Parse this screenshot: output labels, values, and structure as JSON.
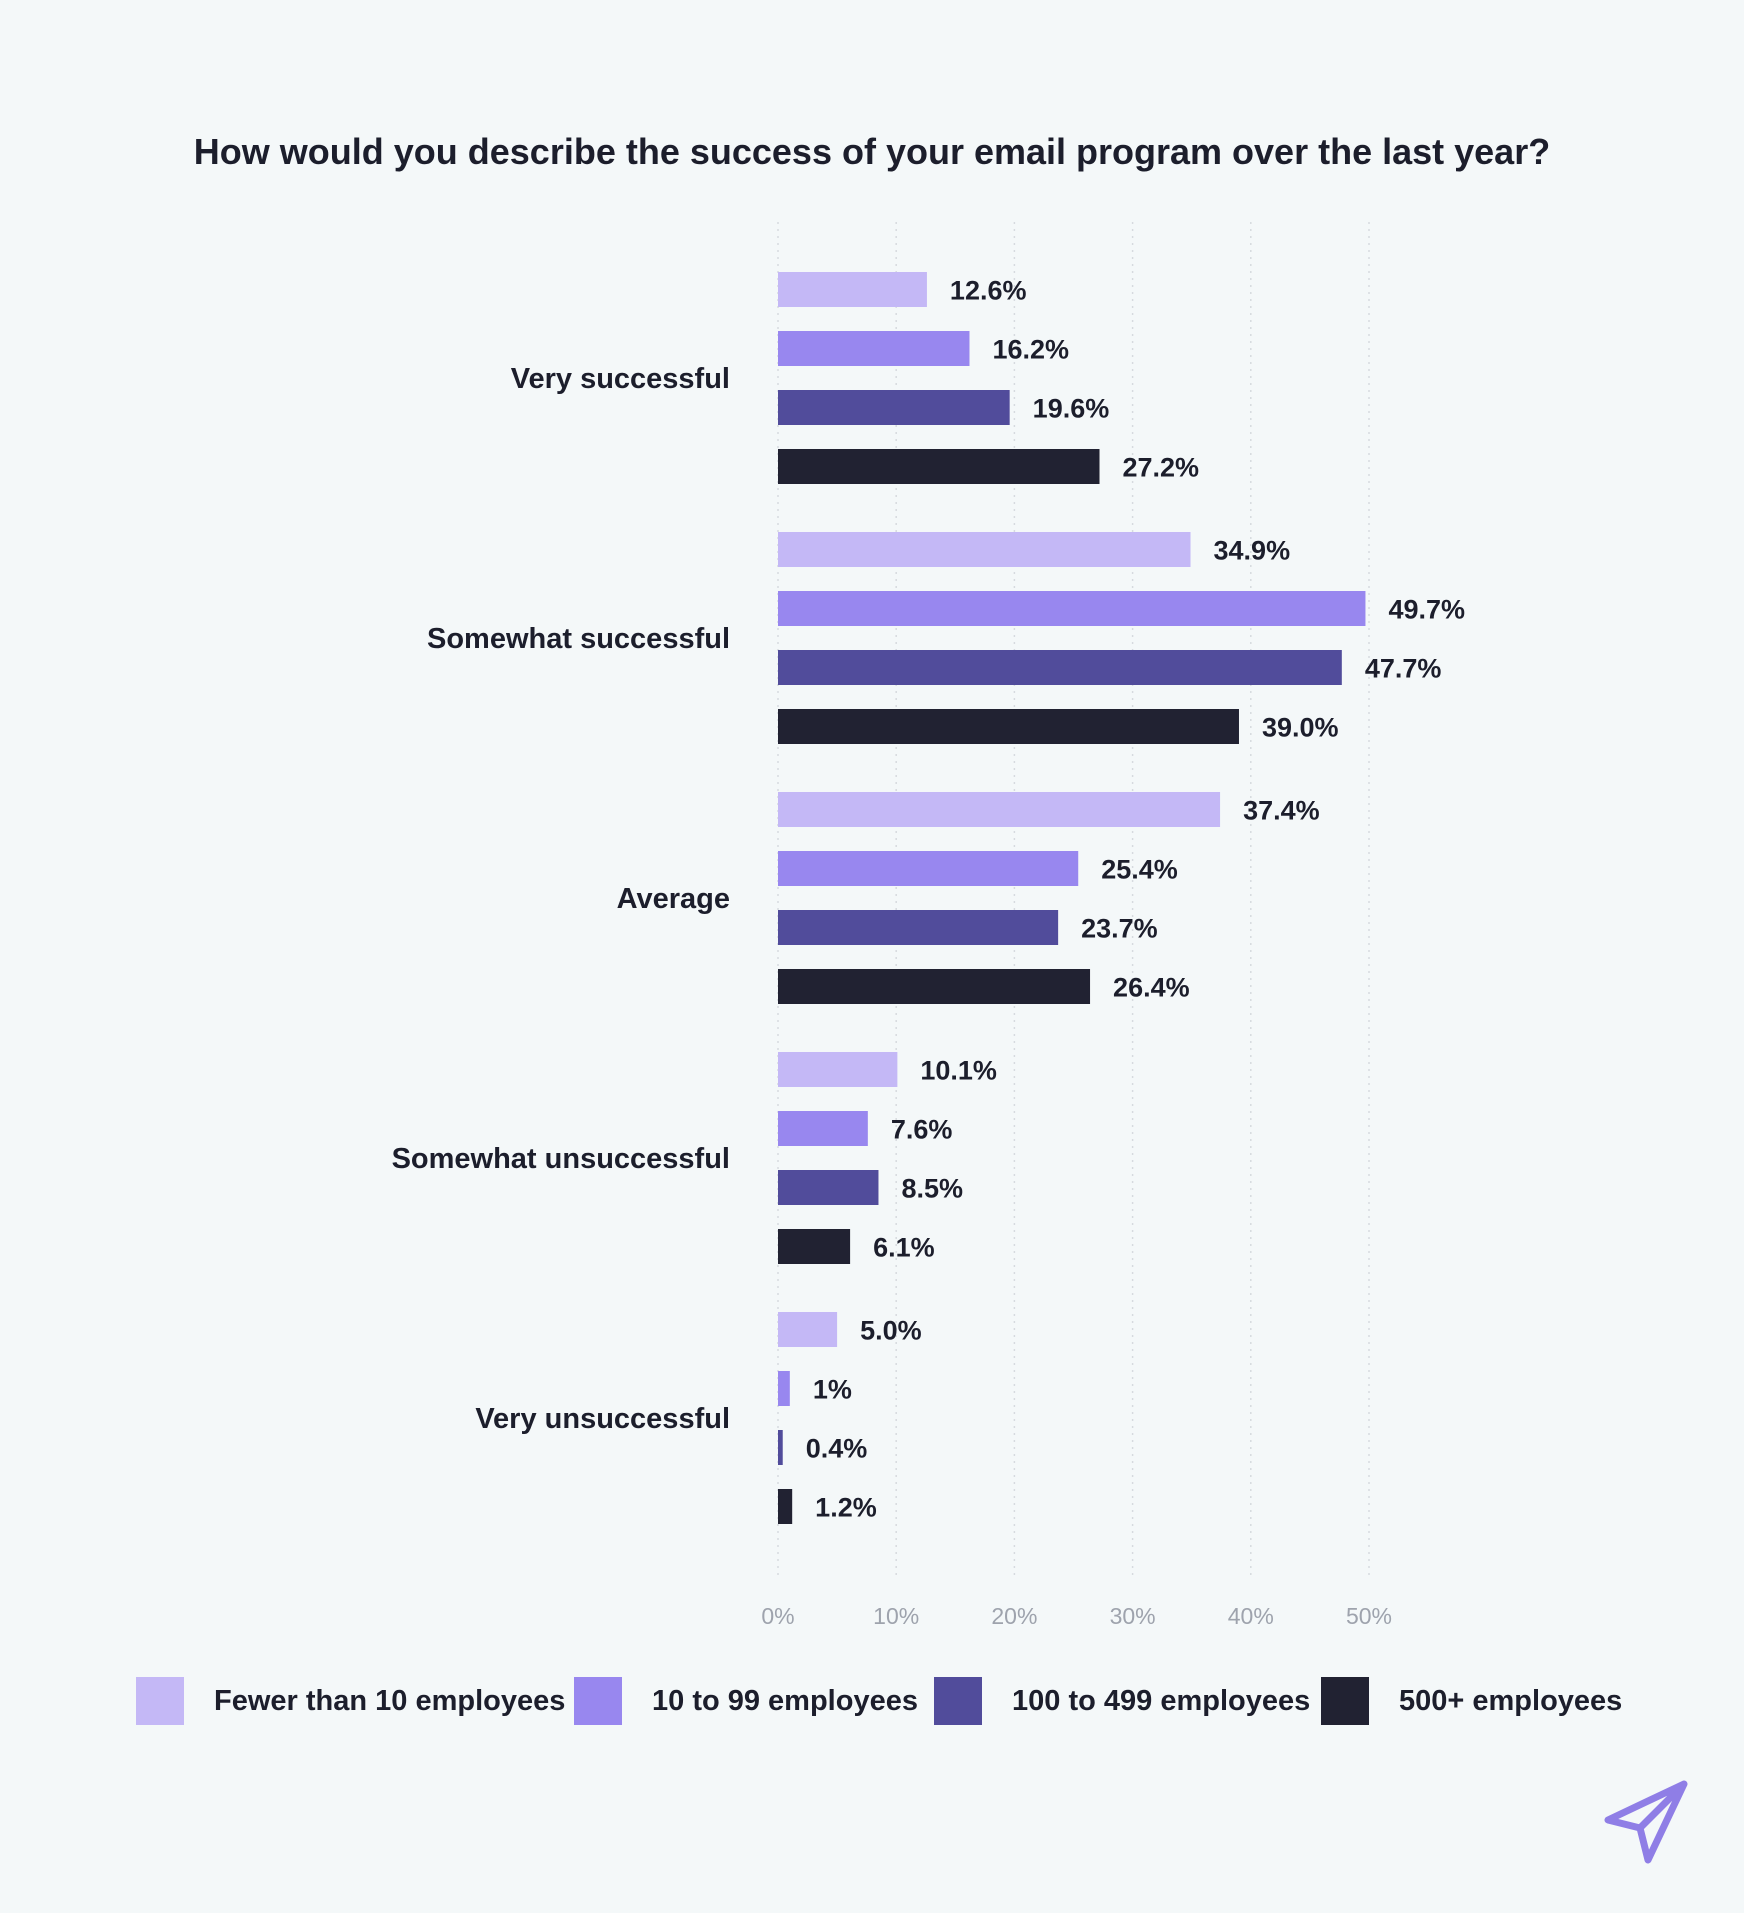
{
  "title": "How would you describe the success of your email program over the last year?",
  "colors": {
    "background": "#f4f8f9",
    "series": [
      "#c4b8f6",
      "#9887ef",
      "#514c9b",
      "#212232"
    ],
    "text": "#1c1e2c",
    "tick": "#9ea3ad",
    "logo": "#8f7ee6"
  },
  "logo": {
    "icon": "paper-plane-icon"
  },
  "chart_data": {
    "type": "bar",
    "orientation": "horizontal",
    "title": "How would you describe the success of your email program over the last year?",
    "xlabel": "",
    "ylabel": "",
    "xlim": [
      0,
      50
    ],
    "x_ticks": [
      "0%",
      "10%",
      "20%",
      "30%",
      "40%",
      "50%"
    ],
    "grid": "vertical dotted",
    "legend_position": "bottom",
    "categories": [
      "Very successful",
      "Somewhat successful",
      "Average",
      "Somewhat unsuccessful",
      "Very unsuccessful"
    ],
    "series": [
      {
        "name": "Fewer than 10 employees",
        "values": [
          12.6,
          34.9,
          37.4,
          10.1,
          5.0
        ],
        "labels": [
          "12.6%",
          "34.9%",
          "37.4%",
          "10.1%",
          "5.0%"
        ]
      },
      {
        "name": "10 to 99 employees",
        "values": [
          16.2,
          49.7,
          25.4,
          7.6,
          1
        ],
        "labels": [
          "16.2%",
          "49.7%",
          "25.4%",
          "7.6%",
          "1%"
        ]
      },
      {
        "name": "100 to 499 employees",
        "values": [
          19.6,
          47.7,
          23.7,
          8.5,
          0.4
        ],
        "labels": [
          "19.6%",
          "47.7%",
          "23.7%",
          "8.5%",
          "0.4%"
        ]
      },
      {
        "name": "500+ employees",
        "values": [
          27.2,
          39.0,
          26.4,
          6.1,
          1.2
        ],
        "labels": [
          "27.2%",
          "39.0%",
          "26.4%",
          "6.1%",
          "1.2%"
        ]
      }
    ]
  }
}
